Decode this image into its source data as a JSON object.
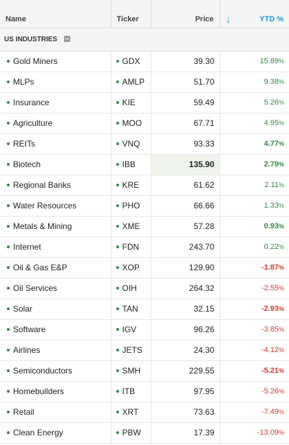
{
  "header": {
    "name_label": "Name",
    "ticker_label": "Ticker",
    "price_label": "Price",
    "ytd_label": "YTD %",
    "sort_icon": "↓"
  },
  "section": {
    "title": "US INDUSTRIES"
  },
  "colors": {
    "positive": "#2e8b3e",
    "negative": "#d33a2c",
    "accent": "#1a9ad6"
  },
  "rows": [
    {
      "name": "Gold Miners",
      "ticker": "GDX",
      "price": "39.30",
      "ytd": "15.89",
      "sign": "pos",
      "bold": false
    },
    {
      "name": "MLPs",
      "ticker": "AMLP",
      "price": "51.70",
      "ytd": "9.38",
      "sign": "pos",
      "bold": false
    },
    {
      "name": "Insurance",
      "ticker": "KIE",
      "price": "59.49",
      "ytd": "5.26",
      "sign": "pos",
      "bold": false
    },
    {
      "name": "Agriculture",
      "ticker": "MOO",
      "price": "67.71",
      "ytd": "4.95",
      "sign": "pos",
      "bold": false
    },
    {
      "name": "REITs",
      "ticker": "VNQ",
      "price": "93.33",
      "ytd": "4.77",
      "sign": "pos",
      "bold": true
    },
    {
      "name": "Biotech",
      "ticker": "IBB",
      "price": "135.90",
      "ytd": "2.79",
      "sign": "pos",
      "bold": true,
      "highlight": true
    },
    {
      "name": "Regional Banks",
      "ticker": "KRE",
      "price": "61.62",
      "ytd": "2.11",
      "sign": "pos",
      "bold": false
    },
    {
      "name": "Water Resources",
      "ticker": "PHO",
      "price": "66.66",
      "ytd": "1.33",
      "sign": "pos",
      "bold": false
    },
    {
      "name": "Metals & Mining",
      "ticker": "XME",
      "price": "57.28",
      "ytd": "0.93",
      "sign": "pos",
      "bold": true
    },
    {
      "name": "Internet",
      "ticker": "FDN",
      "price": "243.70",
      "ytd": "0.22",
      "sign": "pos",
      "bold": false
    },
    {
      "name": "Oil & Gas E&P",
      "ticker": "XOP",
      "price": "129.90",
      "ytd": "-1.87",
      "sign": "neg",
      "bold": true
    },
    {
      "name": "Oil Services",
      "ticker": "OIH",
      "price": "264.32",
      "ytd": "-2.55",
      "sign": "neg",
      "bold": false
    },
    {
      "name": "Solar",
      "ticker": "TAN",
      "price": "32.15",
      "ytd": "-2.93",
      "sign": "neg",
      "bold": true
    },
    {
      "name": "Software",
      "ticker": "IGV",
      "price": "96.26",
      "ytd": "-3.85",
      "sign": "neg",
      "bold": false
    },
    {
      "name": "Airlines",
      "ticker": "JETS",
      "price": "24.30",
      "ytd": "-4.12",
      "sign": "neg",
      "bold": false
    },
    {
      "name": "Semiconductors",
      "ticker": "SMH",
      "price": "229.55",
      "ytd": "-5.21",
      "sign": "neg",
      "bold": true
    },
    {
      "name": "Homebuilders",
      "ticker": "ITB",
      "price": "97.95",
      "ytd": "-5.26",
      "sign": "neg",
      "bold": false
    },
    {
      "name": "Retail",
      "ticker": "XRT",
      "price": "73.63",
      "ytd": "-7.49",
      "sign": "neg",
      "bold": false
    },
    {
      "name": "Clean Energy",
      "ticker": "PBW",
      "price": "17.39",
      "ytd": "-13.09",
      "sign": "neg",
      "bold": false
    }
  ]
}
